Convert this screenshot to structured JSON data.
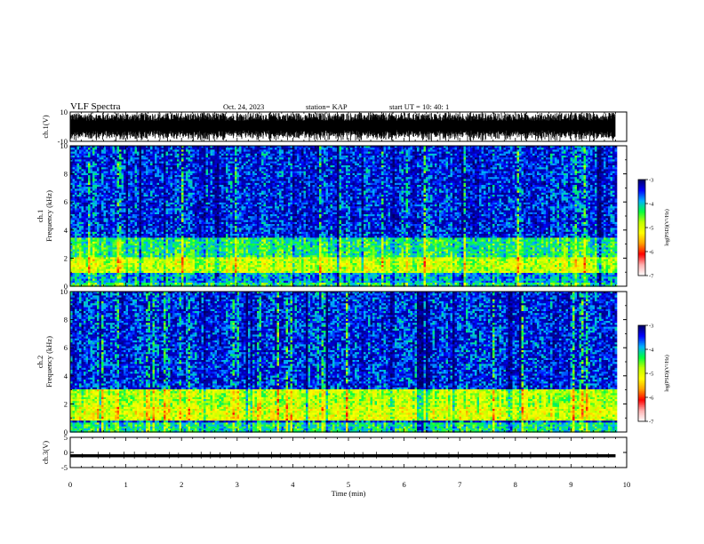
{
  "header": {
    "title": "VLF Spectra",
    "date": "Oct. 24, 2023",
    "station": "station= KAP",
    "start_ut": "start  UT  =   10: 40: 1"
  },
  "colors": {
    "background": "#ffffff",
    "ink": "#000000",
    "colormap": [
      "#000060",
      "#0000ff",
      "#00b0ff",
      "#00ff40",
      "#c0ff00",
      "#ffff00",
      "#ffa000",
      "#ff0000",
      "#ffb0b0",
      "#ffffff"
    ]
  },
  "chart_data": [
    {
      "type": "line",
      "name": "ch1-waveform",
      "ylabel": "ch.1(V)",
      "ylim": [
        -10,
        10
      ],
      "yticks": [
        "10",
        "-10"
      ],
      "x_range_min": [
        0,
        9.8
      ],
      "style": "dense black waveform, roughly ±7 V"
    },
    {
      "type": "heatmap",
      "name": "ch1-spectrogram",
      "ylabel": "ch.1\nFrequency  (kHz)",
      "ylim": [
        0,
        10
      ],
      "yticks": [
        "0",
        "2",
        "4",
        "6",
        "8",
        "10"
      ],
      "x_range_min": [
        0,
        9.8
      ],
      "bands": [
        {
          "f_khz": [
            0,
            0.3
          ],
          "log_psd": -4.3
        },
        {
          "f_khz": [
            0.3,
            0.9
          ],
          "log_psd": -3.9
        },
        {
          "f_khz": [
            1.0,
            2.0
          ],
          "log_psd": -4.9
        },
        {
          "f_khz": [
            2.0,
            3.5
          ],
          "log_psd": -4.3
        },
        {
          "f_khz": [
            3.5,
            10
          ],
          "log_psd": -3.6
        }
      ],
      "colorbar": {
        "label": "log(PSD)(V²/Hz)",
        "range": [
          -7,
          -3
        ],
        "ticks": [
          "-3",
          "-4",
          "-5",
          "-6",
          "-7"
        ]
      }
    },
    {
      "type": "heatmap",
      "name": "ch2-spectrogram",
      "ylabel": "ch.2\nFrequency  (kHz)",
      "ylim": [
        0,
        10
      ],
      "yticks": [
        "0",
        "2",
        "4",
        "6",
        "8",
        "10"
      ],
      "x_range_min": [
        0,
        9.8
      ],
      "bands": [
        {
          "f_khz": [
            0,
            0.7
          ],
          "log_psd": -4.2
        },
        {
          "f_khz": [
            0.8,
            1.8
          ],
          "log_psd": -5.0
        },
        {
          "f_khz": [
            1.8,
            3.0
          ],
          "log_psd": -4.8
        },
        {
          "f_khz": [
            3.0,
            10
          ],
          "log_psd": -3.6
        }
      ],
      "colorbar": {
        "label": "log(PSD)(V²/Hz)",
        "range": [
          -7,
          -3
        ],
        "ticks": [
          "-3",
          "-4",
          "-5",
          "-6",
          "-7"
        ]
      }
    },
    {
      "type": "line",
      "name": "ch3-waveform",
      "ylabel": "ch.3(V)",
      "ylim": [
        -5,
        5
      ],
      "yticks": [
        "5",
        "0",
        "-5"
      ],
      "x_range_min": [
        0,
        9.8
      ],
      "style": "thick near-constant trace at about -1 V"
    }
  ],
  "xaxis": {
    "label": "Time  (min)",
    "range": [
      0,
      10
    ],
    "ticks": [
      "0",
      "1",
      "2",
      "3",
      "4",
      "5",
      "6",
      "7",
      "8",
      "9",
      "10"
    ]
  }
}
